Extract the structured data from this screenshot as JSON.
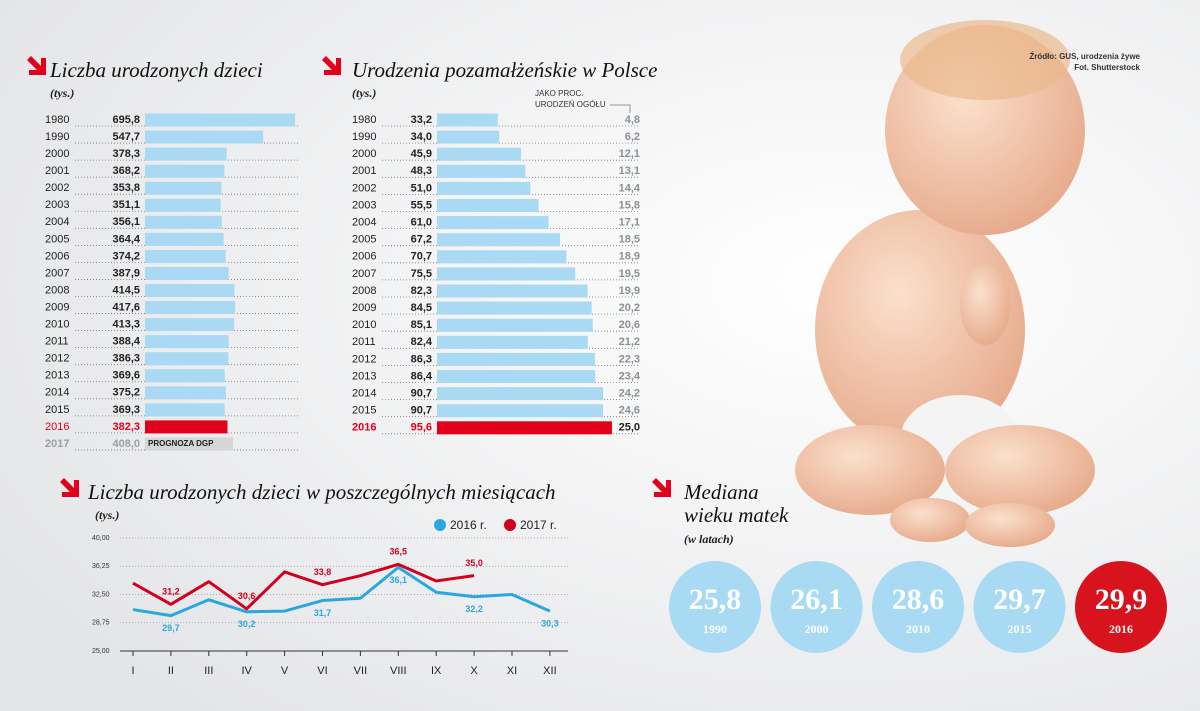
{
  "source": "Źródło: GUS, urodzenia żywe",
  "photo_credit": "Fot. Shutterstock",
  "chart_data": [
    {
      "type": "hbar",
      "title": "Liczba urodzonych dzieci",
      "subtitle": "(tys.)",
      "categories": [
        "1980",
        "1990",
        "2000",
        "2001",
        "2002",
        "2003",
        "2004",
        "2005",
        "2006",
        "2007",
        "2008",
        "2009",
        "2010",
        "2011",
        "2012",
        "2013",
        "2014",
        "2015",
        "2016",
        "2017"
      ],
      "values": [
        695.8,
        547.7,
        378.3,
        368.2,
        353.8,
        351.1,
        356.1,
        364.4,
        374.2,
        387.9,
        414.5,
        417.6,
        413.3,
        388.4,
        386.3,
        369.6,
        375.2,
        369.3,
        382.3,
        408.0
      ],
      "value_labels": [
        "695,8",
        "547,7",
        "378,3",
        "368,2",
        "353,8",
        "351,1",
        "356,1",
        "364,4",
        "374,2",
        "387,9",
        "414,5",
        "417,6",
        "413,3",
        "388,4",
        "386,3",
        "369,6",
        "375,2",
        "369,3",
        "382,3",
        "408,0"
      ],
      "colors": [
        "#a9d9f3",
        "#a9d9f3",
        "#a9d9f3",
        "#a9d9f3",
        "#a9d9f3",
        "#a9d9f3",
        "#a9d9f3",
        "#a9d9f3",
        "#a9d9f3",
        "#a9d9f3",
        "#a9d9f3",
        "#a9d9f3",
        "#a9d9f3",
        "#a9d9f3",
        "#a9d9f3",
        "#a9d9f3",
        "#a9d9f3",
        "#a9d9f3",
        "#e2001a",
        "#d4d6d8"
      ],
      "label_colors": [
        "#222",
        "#222",
        "#222",
        "#222",
        "#222",
        "#222",
        "#222",
        "#222",
        "#222",
        "#222",
        "#222",
        "#222",
        "#222",
        "#222",
        "#222",
        "#222",
        "#222",
        "#222",
        "#e2001a",
        "#9a9fa4"
      ],
      "annotation": "PROGNOZA DGP",
      "xlim": [
        0,
        700
      ]
    },
    {
      "type": "hbar",
      "title": "Urodzenia pozamałżeńskie w Polsce",
      "subtitle": "(tys.)",
      "categories": [
        "1980",
        "1990",
        "2000",
        "2001",
        "2002",
        "2003",
        "2004",
        "2005",
        "2006",
        "2007",
        "2008",
        "2009",
        "2010",
        "2011",
        "2012",
        "2013",
        "2014",
        "2015",
        "2016"
      ],
      "values": [
        33.2,
        34.0,
        45.9,
        48.3,
        51.0,
        55.5,
        61.0,
        67.2,
        70.7,
        75.5,
        82.3,
        84.5,
        85.1,
        82.4,
        86.3,
        86.4,
        90.7,
        90.7,
        95.6
      ],
      "value_labels": [
        "33,2",
        "34,0",
        "45,9",
        "48,3",
        "51,0",
        "55,5",
        "61,0",
        "67,2",
        "70,7",
        "75,5",
        "82,3",
        "84,5",
        "85,1",
        "82,4",
        "86,3",
        "86,4",
        "90,7",
        "90,7",
        "95,6"
      ],
      "colors": [
        "#a9d9f3",
        "#a9d9f3",
        "#a9d9f3",
        "#a9d9f3",
        "#a9d9f3",
        "#a9d9f3",
        "#a9d9f3",
        "#a9d9f3",
        "#a9d9f3",
        "#a9d9f3",
        "#a9d9f3",
        "#a9d9f3",
        "#a9d9f3",
        "#a9d9f3",
        "#a9d9f3",
        "#a9d9f3",
        "#a9d9f3",
        "#a9d9f3",
        "#e2001a"
      ],
      "label_colors": [
        "#222",
        "#222",
        "#222",
        "#222",
        "#222",
        "#222",
        "#222",
        "#222",
        "#222",
        "#222",
        "#222",
        "#222",
        "#222",
        "#222",
        "#222",
        "#222",
        "#222",
        "#222",
        "#e2001a"
      ],
      "percent_label": [
        "JAKO PROC.",
        "URODZEŃ OGÓŁU"
      ],
      "percent": [
        4.8,
        6.2,
        12.1,
        13.1,
        14.4,
        15.8,
        17.1,
        18.5,
        18.9,
        19.5,
        19.9,
        20.2,
        20.6,
        21.2,
        22.3,
        23.4,
        24.2,
        24.6,
        25.0
      ],
      "percent_labels": [
        "4,8",
        "6,2",
        "12,1",
        "13,1",
        "14,4",
        "15,8",
        "17,1",
        "18,5",
        "18,9",
        "19,5",
        "19,9",
        "20,2",
        "20,6",
        "21,2",
        "22,3",
        "23,4",
        "24,2",
        "24,6",
        "25,0"
      ],
      "xlim": [
        0,
        100
      ]
    },
    {
      "type": "line",
      "title": "Liczba urodzonych dzieci w poszczególnych miesiącach",
      "subtitle": "(tys.)",
      "categories": [
        "I",
        "II",
        "III",
        "IV",
        "V",
        "VI",
        "VII",
        "VIII",
        "IX",
        "X",
        "XI",
        "XII"
      ],
      "series": [
        {
          "name": "2016 r.",
          "color": "#2aa7df",
          "values": [
            30.5,
            29.7,
            31.8,
            30.2,
            30.3,
            31.7,
            32.0,
            36.1,
            32.8,
            32.2,
            32.5,
            30.3
          ],
          "value_labels": [
            null,
            "29,7",
            null,
            "30,2",
            null,
            "31,7",
            null,
            "36,1",
            null,
            "32,2",
            null,
            "30,3"
          ]
        },
        {
          "name": "2017 r.",
          "color": "#d2001e",
          "values": [
            34.0,
            31.2,
            34.2,
            30.6,
            35.5,
            33.8,
            35.0,
            36.5,
            34.3,
            35.0,
            null,
            null
          ],
          "value_labels": [
            null,
            "31,2",
            null,
            "30,6",
            null,
            "33,8",
            null,
            "36,5",
            null,
            "35,0",
            null,
            null
          ]
        }
      ],
      "ylim": [
        25,
        40
      ],
      "yticks": [
        {
          "value": 25,
          "label": "25,00"
        },
        {
          "value": 28.75,
          "label": "28,75"
        },
        {
          "value": 32.5,
          "label": "32,50"
        },
        {
          "value": 36.25,
          "label": "36,25"
        },
        {
          "value": 40,
          "label": "40,00"
        }
      ],
      "grid": true
    },
    {
      "type": "circles",
      "title": [
        "Mediana",
        "wieku matek"
      ],
      "subtitle": "(w latach)",
      "categories": [
        "1990",
        "2000",
        "2010",
        "2015",
        "2016"
      ],
      "values": [
        25.8,
        26.1,
        28.6,
        29.7,
        29.9
      ],
      "value_labels": [
        "25,8",
        "26,1",
        "28,6",
        "29,7",
        "29,9"
      ],
      "colors": [
        "#a8daf3",
        "#a8daf3",
        "#a8daf3",
        "#a8daf3",
        "#d7141e"
      ]
    }
  ]
}
